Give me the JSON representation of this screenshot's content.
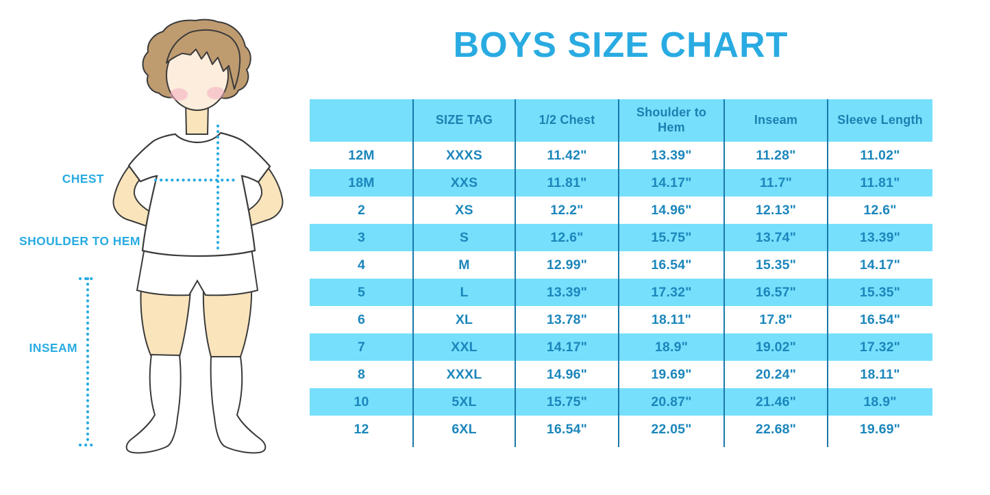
{
  "page": {
    "title": "BOYS SIZE CHART"
  },
  "figure": {
    "description": "boy-illustration-with-measurement-guides",
    "labels": {
      "chest": "CHEST",
      "shoulder_to_hem": "SHOULDER TO HEM",
      "inseam": "INSEAM"
    },
    "colors": {
      "hair": "#BF9B70",
      "skin_face": "#FCEDDD",
      "skin_limbs": "#F9E4BC",
      "cheek": "#F2ABBE",
      "outline": "#3a3a3a",
      "clothing": "#ffffff"
    }
  },
  "table": {
    "display_headers": [
      "",
      "SIZE TAG",
      "1/2 Chest",
      "Shoulder to\nHem",
      "Inseam",
      "Sleeve Length"
    ]
  },
  "chart_data": {
    "type": "table",
    "title": "BOYS SIZE CHART",
    "columns": [
      "",
      "SIZE TAG",
      "1/2 Chest",
      "Shoulder to Hem",
      "Inseam",
      "Sleeve Length"
    ],
    "rows": [
      [
        "12M",
        "XXXS",
        "11.42\"",
        "13.39\"",
        "11.28\"",
        "11.02\""
      ],
      [
        "18M",
        "XXS",
        "11.81\"",
        "14.17\"",
        "11.7\"",
        "11.81\""
      ],
      [
        "2",
        "XS",
        "12.2\"",
        "14.96\"",
        "12.13\"",
        "12.6\""
      ],
      [
        "3",
        "S",
        "12.6\"",
        "15.75\"",
        "13.74\"",
        "13.39\""
      ],
      [
        "4",
        "M",
        "12.99\"",
        "16.54\"",
        "15.35\"",
        "14.17\""
      ],
      [
        "5",
        "L",
        "13.39\"",
        "17.32\"",
        "16.57\"",
        "15.35\""
      ],
      [
        "6",
        "XL",
        "13.78\"",
        "18.11\"",
        "17.8\"",
        "16.54\""
      ],
      [
        "7",
        "XXL",
        "14.17\"",
        "18.9\"",
        "19.02\"",
        "17.32\""
      ],
      [
        "8",
        "XXXL",
        "14.96\"",
        "19.69\"",
        "20.24\"",
        "18.11\""
      ],
      [
        "10",
        "5XL",
        "15.75\"",
        "20.87\"",
        "21.46\"",
        "18.9\""
      ],
      [
        "12",
        "6XL",
        "16.54\"",
        "22.05\"",
        "22.68\"",
        "19.69\""
      ]
    ],
    "layout": {
      "header_background": "#76DFFC",
      "row_striping": [
        "#ffffff",
        "#76DFFC"
      ],
      "column_divider_color": "#1878A8",
      "text_color": "#1B86BB",
      "title_color": "#29ABE2"
    }
  }
}
